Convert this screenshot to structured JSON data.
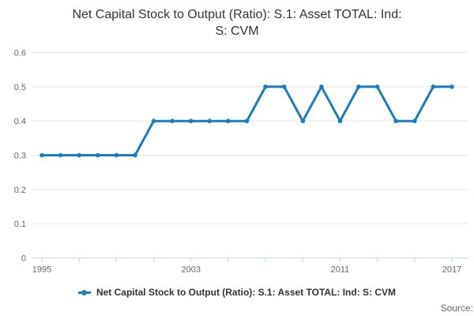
{
  "title": {
    "line1": "Net Capital Stock to Output (Ratio): S.1: Asset TOTAL: Ind:",
    "line2": "S: CVM"
  },
  "legend": {
    "label": "Net Capital Stock to Output (Ratio): S.1: Asset TOTAL: Ind: S: CVM"
  },
  "source": {
    "label": "Source:"
  },
  "colors": {
    "background": "#ffffff",
    "series": "#1a7cbd",
    "gridline": "#e6e6e6",
    "axis_line": "#ccd6eb",
    "tick": "#ccd6eb",
    "axis_label": "#666666",
    "title_text": "#333333",
    "legend_text": "#333333",
    "source_text": "#666666"
  },
  "chart_data": {
    "type": "line",
    "title": "Net Capital Stock to Output (Ratio): S.1: Asset TOTAL: Ind: S: CVM",
    "xlabel": "",
    "ylabel": "",
    "x": [
      1995,
      1996,
      1997,
      1998,
      1999,
      2000,
      2001,
      2002,
      2003,
      2004,
      2005,
      2006,
      2007,
      2008,
      2009,
      2010,
      2011,
      2012,
      2013,
      2014,
      2015,
      2016,
      2017
    ],
    "series": [
      {
        "name": "Net Capital Stock to Output (Ratio): S.1: Asset TOTAL: Ind: S: CVM",
        "color": "#1a7cbd",
        "values": [
          0.3,
          0.3,
          0.3,
          0.3,
          0.3,
          0.3,
          0.4,
          0.4,
          0.4,
          0.4,
          0.4,
          0.4,
          0.5,
          0.5,
          0.4,
          0.5,
          0.4,
          0.5,
          0.5,
          0.4,
          0.4,
          0.5,
          0.5
        ]
      }
    ],
    "xlim": [
      1995,
      2017
    ],
    "ylim": [
      0,
      0.6
    ],
    "yticks": [
      0,
      0.1,
      0.2,
      0.3,
      0.4,
      0.5,
      0.6
    ],
    "ytick_labels": [
      "0",
      "0.1",
      "0.2",
      "0.3",
      "0.4",
      "0.5",
      "0.6"
    ],
    "xticks": [
      1995,
      1997,
      1999,
      2001,
      2003,
      2005,
      2007,
      2009,
      2011,
      2013,
      2015,
      2017
    ],
    "xtick_labeled": [
      1995,
      2003,
      2011,
      2017
    ],
    "grid": "horizontal",
    "legend_position": "bottom",
    "markers": true
  }
}
